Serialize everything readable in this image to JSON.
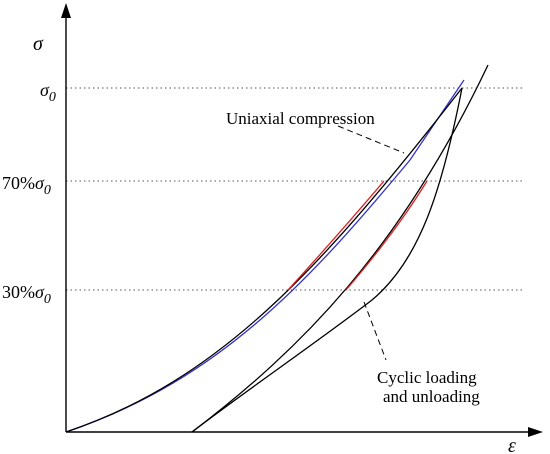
{
  "figure": {
    "y_axis_symbol": "σ",
    "x_axis_symbol": "ε",
    "ticks": {
      "sigma0": {
        "base": "σ",
        "sub": "0"
      },
      "p70": {
        "prefix": "70%",
        "base": "σ",
        "sub": "0"
      },
      "p30": {
        "prefix": "30%",
        "base": "σ",
        "sub": "0"
      }
    },
    "labels": {
      "uniaxial": "Uniaxial compression",
      "cyclic_line1": "Cyclic loading",
      "cyclic_line2": "and unloading"
    },
    "colors": {
      "uniaxial_curve": "#3333cc",
      "highlight": "#e02020",
      "curves": "#000000",
      "gridlines": "#555555"
    }
  }
}
